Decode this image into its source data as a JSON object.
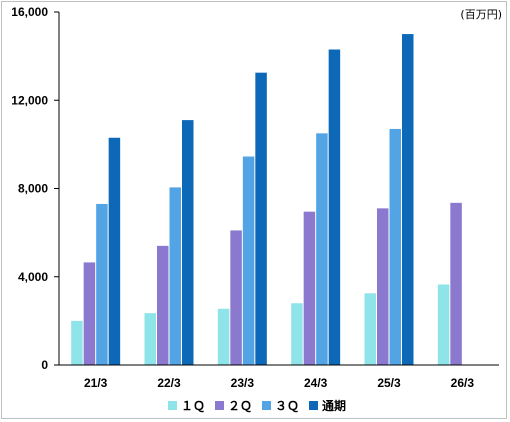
{
  "chart_data": {
    "type": "bar",
    "unit_label": "(百万円)",
    "categories": [
      "21/3",
      "22/3",
      "23/3",
      "24/3",
      "25/3",
      "26/3"
    ],
    "ylim": [
      0,
      16000
    ],
    "yticks": [
      0,
      4000,
      8000,
      12000,
      16000
    ],
    "ytick_labels": [
      "0",
      "4,000",
      "8,000",
      "12,000",
      "16,000"
    ],
    "grid": false,
    "legend_position": "bottom",
    "series": [
      {
        "name": "１Ｑ",
        "color": "#8ee4e8",
        "values": [
          2000,
          2350,
          2550,
          2800,
          3250,
          3650
        ]
      },
      {
        "name": "２Ｑ",
        "color": "#8b79cf",
        "values": [
          4650,
          5400,
          6100,
          6950,
          7100,
          7350
        ]
      },
      {
        "name": "３Ｑ",
        "color": "#52a4e4",
        "values": [
          7300,
          8050,
          9450,
          10500,
          10700,
          null
        ]
      },
      {
        "name": "通期",
        "color": "#0e68b8",
        "values": [
          10300,
          11100,
          13250,
          14300,
          15000,
          null
        ]
      }
    ]
  }
}
